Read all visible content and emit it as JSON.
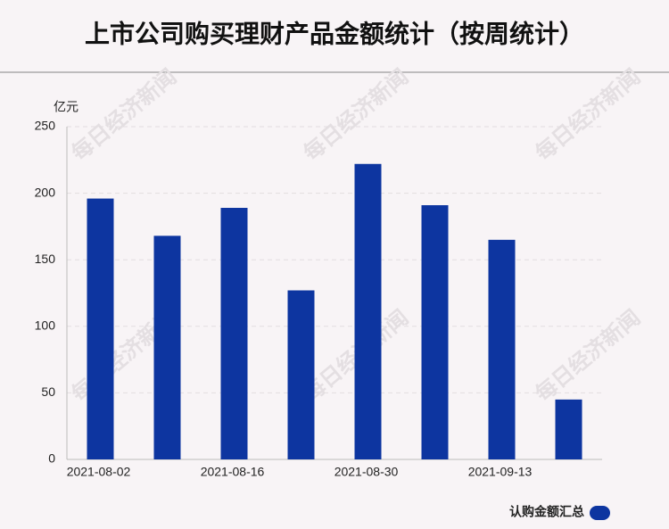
{
  "chart_data": {
    "type": "bar",
    "title": "上市公司购买理财产品金额统计（按周统计）",
    "y_unit": "亿元",
    "categories": [
      "2021-08-02",
      null,
      "2021-08-16",
      null,
      "2021-08-30",
      null,
      "2021-09-13",
      null
    ],
    "series": [
      {
        "name": "认购金额汇总",
        "color": "#0d35a0",
        "values": [
          196,
          168,
          189,
          127,
          222,
          191,
          165,
          45
        ]
      }
    ],
    "ylim": [
      0,
      250
    ],
    "yticks": [
      0,
      50,
      100,
      150,
      200,
      250
    ],
    "grid": true,
    "legend": "bottom-right",
    "watermark": "每日经济新闻"
  }
}
